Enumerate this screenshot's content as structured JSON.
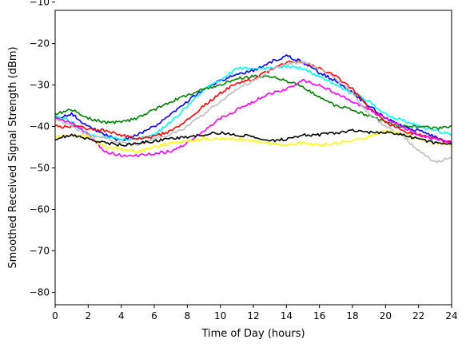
{
  "chart_data": {
    "type": "line",
    "title": "",
    "xlabel": "Time of Day (hours)",
    "ylabel": "Smoothed Received Signal Strength (dBm)",
    "xlim": [
      0,
      24
    ],
    "ylim": [
      -83,
      -12
    ],
    "xticks": [
      0,
      2,
      4,
      6,
      8,
      10,
      12,
      14,
      16,
      18,
      20,
      22,
      24
    ],
    "yticks": [
      -80,
      -70,
      -60,
      -50,
      -40,
      -30,
      -20,
      -10
    ],
    "grid": false,
    "legend": "none",
    "series": [
      {
        "name": "blue",
        "color": "#0000ff",
        "x": [
          0,
          1,
          2,
          3,
          4,
          5,
          6,
          7,
          8,
          9,
          10,
          11,
          12,
          13,
          14,
          15,
          16,
          17,
          18,
          19,
          20,
          21,
          22,
          23,
          24
        ],
        "y": [
          -38,
          -37,
          -40,
          -42,
          -43.5,
          -42,
          -40,
          -37,
          -34,
          -31,
          -29,
          -27.5,
          -26.5,
          -24.5,
          -23,
          -24.5,
          -27,
          -29,
          -32,
          -35,
          -38,
          -40,
          -41,
          -42.5,
          -44
        ]
      },
      {
        "name": "cyan",
        "color": "#00ffff",
        "x": [
          0,
          1,
          2,
          3,
          4,
          5,
          6,
          7,
          8,
          9,
          10,
          11,
          12,
          13,
          14,
          15,
          16,
          17,
          18,
          19,
          20,
          21,
          22,
          23,
          24
        ],
        "y": [
          -37,
          -39,
          -42,
          -42.5,
          -43,
          -43,
          -42,
          -39,
          -35,
          -31,
          -29,
          -26,
          -26,
          -26,
          -25.5,
          -26,
          -28,
          -30,
          -32,
          -34,
          -37,
          -38.5,
          -40,
          -41,
          -42
        ]
      },
      {
        "name": "green",
        "color": "#008000",
        "x": [
          0,
          1,
          2,
          3,
          4,
          5,
          6,
          7,
          8,
          9,
          10,
          11,
          12,
          13,
          14,
          15,
          16,
          17,
          18,
          19,
          20,
          21,
          22,
          23,
          24
        ],
        "y": [
          -37,
          -36,
          -38,
          -39,
          -39,
          -38,
          -36,
          -34,
          -32.5,
          -31,
          -30,
          -28.5,
          -28,
          -28,
          -29,
          -30.5,
          -33,
          -35,
          -36,
          -37.5,
          -39,
          -40,
          -40,
          -40.5,
          -40
        ]
      },
      {
        "name": "red",
        "color": "#ff0000",
        "x": [
          0,
          1,
          2,
          3,
          4,
          5,
          6,
          7,
          8,
          9,
          10,
          11,
          12,
          13,
          14,
          15,
          16,
          17,
          18,
          19,
          20,
          21,
          22,
          23,
          24
        ],
        "y": [
          -40,
          -40,
          -40.5,
          -41,
          -42,
          -43,
          -42.5,
          -41,
          -38.5,
          -35,
          -32,
          -29.5,
          -28.5,
          -26.5,
          -24.5,
          -24.5,
          -26,
          -28,
          -31,
          -35.5,
          -39,
          -41,
          -42,
          -43,
          -44
        ]
      },
      {
        "name": "magenta",
        "color": "#ff00ff",
        "x": [
          0,
          1,
          2,
          3,
          4,
          5,
          6,
          7,
          8,
          9,
          10,
          11,
          12,
          13,
          14,
          15,
          16,
          17,
          18,
          19,
          20,
          21,
          22,
          23,
          24
        ],
        "y": [
          -38,
          -39,
          -42,
          -46,
          -47,
          -47,
          -46.5,
          -46,
          -44,
          -41,
          -38,
          -36,
          -34,
          -32,
          -31,
          -29,
          -30,
          -32,
          -34,
          -36,
          -38,
          -40,
          -42,
          -43,
          -44
        ]
      },
      {
        "name": "silver",
        "color": "#bfbfbf",
        "x": [
          0,
          1,
          2,
          3,
          4,
          5,
          6,
          7,
          8,
          9,
          10,
          11,
          12,
          13,
          14,
          15,
          16,
          17,
          18,
          19,
          20,
          21,
          22,
          23,
          24
        ],
        "y": [
          -38,
          -40,
          -42,
          -43,
          -44,
          -44.5,
          -43,
          -42,
          -40,
          -37,
          -34,
          -31,
          -29,
          -26.5,
          -25,
          -24.5,
          -26,
          -28.5,
          -32,
          -37,
          -40,
          -42,
          -46,
          -48.5,
          -47.5
        ]
      },
      {
        "name": "yellow",
        "color": "#ffff00",
        "x": [
          0,
          1,
          2,
          3,
          4,
          5,
          6,
          7,
          8,
          9,
          10,
          11,
          12,
          13,
          14,
          15,
          16,
          17,
          18,
          19,
          20,
          21,
          22,
          23,
          24
        ],
        "y": [
          -42.5,
          -42,
          -42.5,
          -45,
          -45.5,
          -46,
          -45,
          -44,
          -43.5,
          -43,
          -43,
          -43,
          -43.5,
          -44,
          -44.5,
          -44,
          -44.5,
          -44,
          -43.5,
          -42.5,
          -41,
          -42,
          -43,
          -44,
          -44.5
        ]
      },
      {
        "name": "black",
        "color": "#000000",
        "x": [
          0,
          1,
          2,
          3,
          4,
          5,
          6,
          7,
          8,
          9,
          10,
          11,
          12,
          13,
          14,
          15,
          16,
          17,
          18,
          19,
          20,
          21,
          22,
          23,
          24
        ],
        "y": [
          -43,
          -42,
          -43,
          -44,
          -44.5,
          -44,
          -43.5,
          -43,
          -42.5,
          -42,
          -41.5,
          -42,
          -42.5,
          -43.5,
          -43,
          -42,
          -42,
          -41.5,
          -41,
          -41.5,
          -41.5,
          -42,
          -43,
          -44,
          -44
        ]
      }
    ]
  }
}
